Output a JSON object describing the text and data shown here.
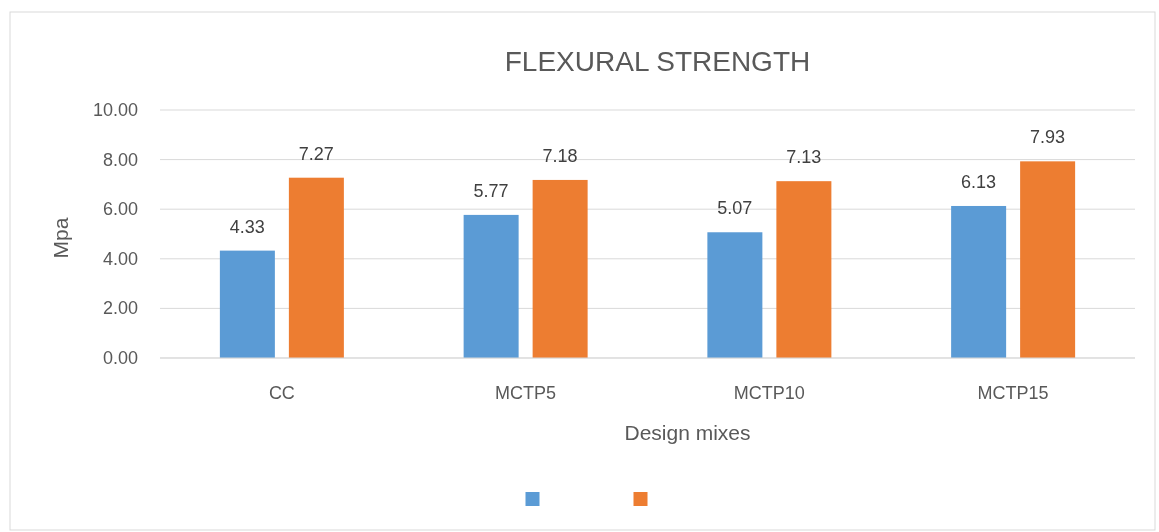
{
  "chart_data": {
    "type": "bar",
    "title": "FLEXURAL STRENGTH",
    "xlabel": "Design mixes",
    "ylabel": "Mpa",
    "categories": [
      "CC",
      "MCTP5",
      "MCTP10",
      "MCTP15"
    ],
    "series": [
      {
        "color": "#5b9bd5",
        "values": [
          4.33,
          5.77,
          5.07,
          6.13
        ]
      },
      {
        "color": "#ed7d31",
        "values": [
          7.27,
          7.18,
          7.13,
          7.93
        ]
      }
    ],
    "ylim": [
      0,
      10
    ],
    "yticks": [
      {
        "value": 0,
        "label": "0.00"
      },
      {
        "value": 2,
        "label": "2.00"
      },
      {
        "value": 4,
        "label": "4.00"
      },
      {
        "value": 6,
        "label": "6.00"
      },
      {
        "value": 8,
        "label": "8.00"
      },
      {
        "value": 10,
        "label": "10.00"
      }
    ],
    "grid": "y",
    "data_labels": true
  }
}
